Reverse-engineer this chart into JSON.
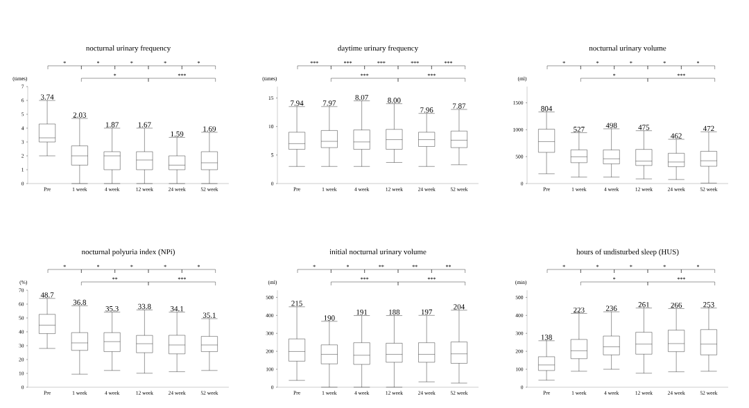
{
  "chart_data": [
    {
      "type": "box",
      "title": "nocturnal urinary frequency",
      "ylabel": "(times)",
      "categories": [
        "Pre",
        "1 week",
        "4 week",
        "12 week",
        "24 week",
        "52 week"
      ],
      "boxes": [
        {
          "low": 2,
          "q1": 3,
          "median": 3.3,
          "q3": 4.3,
          "high": 6
        },
        {
          "low": 0,
          "q1": 1.33,
          "median": 2,
          "q3": 2.72,
          "high": 4.7
        },
        {
          "low": 0,
          "q1": 1,
          "median": 2,
          "q3": 2.3,
          "high": 4
        },
        {
          "low": 0,
          "q1": 1,
          "median": 1.7,
          "q3": 2.3,
          "high": 4
        },
        {
          "low": 0,
          "q1": 1,
          "median": 1.33,
          "q3": 2,
          "high": 3.33
        },
        {
          "low": 0,
          "q1": 1,
          "median": 1.5,
          "q3": 2.3,
          "high": 3.7
        }
      ],
      "value_labels": [
        "3.74",
        "2.03",
        "1.87",
        "1.67",
        "1.59",
        "1.69"
      ],
      "ylim": [
        0,
        7
      ],
      "yticks": [
        0,
        1,
        2,
        3,
        4,
        5,
        6,
        7
      ],
      "annotations": [
        "*",
        "*",
        "*",
        "*",
        "*",
        "*",
        "***"
      ]
    },
    {
      "type": "box",
      "title": "daytime urinary frequency",
      "ylabel": "(times)",
      "categories": [
        "Pre",
        "1 week",
        "4 week",
        "12 week",
        "24 week",
        "52 week"
      ],
      "boxes": [
        {
          "low": 3,
          "q1": 6,
          "median": 7,
          "q3": 9,
          "high": 13.5
        },
        {
          "low": 3,
          "q1": 6.3,
          "median": 7.4,
          "q3": 9.3,
          "high": 13.5
        },
        {
          "low": 3,
          "q1": 6,
          "median": 7.3,
          "q3": 9.4,
          "high": 14.5
        },
        {
          "low": 3.7,
          "q1": 6,
          "median": 7.7,
          "q3": 9.5,
          "high": 14
        },
        {
          "low": 3,
          "q1": 6.5,
          "median": 7.7,
          "q3": 9,
          "high": 12.3
        },
        {
          "low": 3.3,
          "q1": 6.3,
          "median": 7.6,
          "q3": 9.2,
          "high": 13
        }
      ],
      "value_labels": [
        "7.94",
        "7.97",
        "8.07",
        "8.00",
        "7.96",
        "7.87"
      ],
      "ylim": [
        0,
        17
      ],
      "yticks": [
        0,
        5,
        10,
        15
      ],
      "annotations": [
        "***",
        "***",
        "***",
        "***",
        "***",
        "***",
        "***"
      ]
    },
    {
      "type": "box",
      "title": "nocturnal urinary volume",
      "ylabel": "(ml)",
      "categories": [
        "Pre",
        "1 week",
        "4 week",
        "12 week",
        "24 week",
        "52 week"
      ],
      "boxes": [
        {
          "low": 182,
          "q1": 579,
          "median": 779,
          "q3": 1010,
          "high": 1329
        },
        {
          "low": 120,
          "q1": 388,
          "median": 497,
          "q3": 626,
          "high": 944
        },
        {
          "low": 120,
          "q1": 365,
          "median": 460,
          "q3": 625,
          "high": 1016
        },
        {
          "low": 87,
          "q1": 336,
          "median": 417,
          "q3": 634,
          "high": 981
        },
        {
          "low": 75,
          "q1": 313,
          "median": 400,
          "q3": 562,
          "high": 822
        },
        {
          "low": 9,
          "q1": 321,
          "median": 423,
          "q3": 599,
          "high": 961
        }
      ],
      "value_labels": [
        "804",
        "527",
        "498",
        "475",
        "462",
        "472"
      ],
      "ylim": [
        0,
        1800
      ],
      "yticks": [
        0,
        500,
        1000,
        1500
      ],
      "annotations": [
        "*",
        "*",
        "*",
        "*",
        "*",
        "*",
        "***"
      ]
    },
    {
      "type": "box",
      "title": "nocturnal polyuria index (NPi)",
      "ylabel": "(%)",
      "categories": [
        "Pre",
        "1 week",
        "4 week",
        "12 week",
        "24 week",
        "52 week"
      ],
      "boxes": [
        {
          "low": 28,
          "q1": 38.7,
          "median": 44.8,
          "q3": 52.6,
          "high": 64.1
        },
        {
          "low": 9.4,
          "q1": 26.6,
          "median": 32,
          "q3": 39.4,
          "high": 58.8
        },
        {
          "low": 12.1,
          "q1": 25.7,
          "median": 32.9,
          "q3": 39.4,
          "high": 54.2
        },
        {
          "low": 10.1,
          "q1": 24.9,
          "median": 31.4,
          "q3": 37.4,
          "high": 55.8
        },
        {
          "low": 11.2,
          "q1": 24.1,
          "median": 30.5,
          "q3": 37.5,
          "high": 54.2
        },
        {
          "low": 12.1,
          "q1": 25.7,
          "median": 30.5,
          "q3": 36.7,
          "high": 49.5
        }
      ],
      "value_labels": [
        "48.7",
        "36.8",
        "35.3",
        "33.8",
        "34.1",
        "35.1"
      ],
      "ylim": [
        0,
        70
      ],
      "yticks": [
        0,
        10,
        20,
        30,
        40,
        50,
        60,
        70
      ],
      "annotations": [
        "*",
        "*",
        "*",
        "*",
        "*",
        "**",
        "***"
      ]
    },
    {
      "type": "box",
      "title": "initial nocturnal urinary volume",
      "ylabel": "(ml)",
      "categories": [
        "Pre",
        "1 week",
        "4 week",
        "12 week",
        "24 week",
        "52 week"
      ],
      "boxes": [
        {
          "low": 38,
          "q1": 145,
          "median": 199,
          "q3": 269,
          "high": 448
        },
        {
          "low": 0,
          "q1": 130,
          "median": 183,
          "q3": 236,
          "high": 367
        },
        {
          "low": 0,
          "q1": 127,
          "median": 178,
          "q3": 248,
          "high": 399
        },
        {
          "low": 0,
          "q1": 139,
          "median": 183,
          "q3": 245,
          "high": 399
        },
        {
          "low": 30,
          "q1": 139,
          "median": 183,
          "q3": 248,
          "high": 400
        },
        {
          "low": 23,
          "q1": 133,
          "median": 186,
          "q3": 252,
          "high": 429
        }
      ],
      "value_labels": [
        "215",
        "190",
        "191",
        "188",
        "197",
        "204"
      ],
      "ylim": [
        0,
        540
      ],
      "yticks": [
        0,
        100,
        200,
        300,
        400,
        500
      ],
      "annotations": [
        "*",
        "*",
        "**",
        "**",
        "**",
        "***",
        "***"
      ]
    },
    {
      "type": "box",
      "title": "hours of undisturbed sleep (HUS)",
      "ylabel": "(min)",
      "categories": [
        "Pre",
        "1 week",
        "4 week",
        "12 week",
        "24 week",
        "52 week"
      ],
      "boxes": [
        {
          "low": 39,
          "q1": 93,
          "median": 124,
          "q3": 170,
          "high": 259
        },
        {
          "low": 89,
          "q1": 159,
          "median": 203,
          "q3": 266,
          "high": 411
        },
        {
          "low": 100,
          "q1": 180,
          "median": 225,
          "q3": 285,
          "high": 420
        },
        {
          "low": 78,
          "q1": 184,
          "median": 240,
          "q3": 306,
          "high": 441
        },
        {
          "low": 86,
          "q1": 198,
          "median": 243,
          "q3": 318,
          "high": 438
        },
        {
          "low": 89,
          "q1": 180,
          "median": 240,
          "q3": 321,
          "high": 441
        }
      ],
      "value_labels": [
        "138",
        "223",
        "236",
        "261",
        "266",
        "253"
      ],
      "ylim": [
        0,
        540
      ],
      "yticks": [
        0,
        100,
        200,
        300,
        400,
        500
      ],
      "annotations": [
        "*",
        "*",
        "*",
        "*",
        "*",
        "*",
        "***"
      ]
    }
  ]
}
